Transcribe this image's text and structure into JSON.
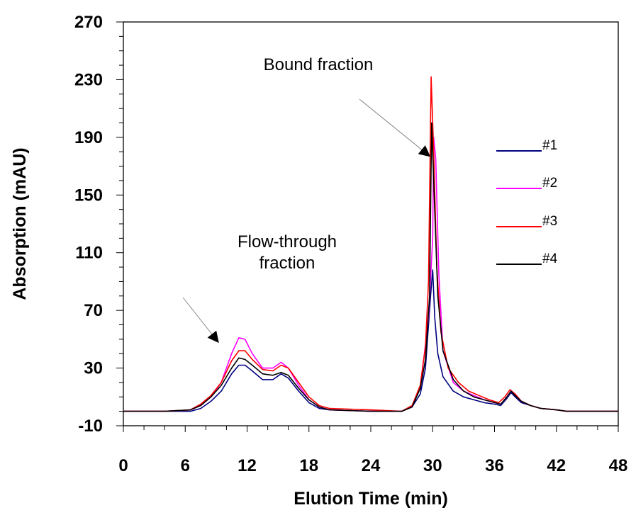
{
  "chart_data": {
    "type": "line",
    "title": "",
    "xlabel": "Elution Time (min)",
    "ylabel": "Absorption (mAU)",
    "xlim": [
      0,
      48
    ],
    "ylim": [
      -10,
      270
    ],
    "x_ticks": [
      0,
      6,
      12,
      18,
      24,
      30,
      36,
      42,
      48
    ],
    "x_tick_labels": [
      "0",
      "6",
      "12",
      "18",
      "24",
      "30",
      "36",
      "42",
      "48"
    ],
    "y_ticks": [
      -10,
      30,
      70,
      110,
      150,
      190,
      230,
      270
    ],
    "y_tick_labels": [
      "-10",
      "30",
      "70",
      "110",
      "150",
      "190",
      "230",
      "270"
    ],
    "grid": false,
    "legend_position": "right",
    "annotations": [
      {
        "text": "Bound fraction",
        "lines": [
          "Bound fraction"
        ],
        "arrow_to": [
          29.7,
          177
        ]
      },
      {
        "text": "Flow-through fraction",
        "lines": [
          "Flow-through",
          "fraction"
        ],
        "arrow_to": [
          9.2,
          48
        ]
      }
    ],
    "series": [
      {
        "name": "#1",
        "color": "#000080",
        "points": [
          [
            0,
            0
          ],
          [
            4,
            0
          ],
          [
            6.5,
            0
          ],
          [
            7.5,
            2
          ],
          [
            8.5,
            7
          ],
          [
            9.5,
            14
          ],
          [
            10.5,
            26
          ],
          [
            11.2,
            32
          ],
          [
            11.8,
            32
          ],
          [
            12.5,
            28
          ],
          [
            13.5,
            22
          ],
          [
            14.5,
            22
          ],
          [
            15.3,
            26
          ],
          [
            16,
            23
          ],
          [
            17,
            14
          ],
          [
            18,
            6
          ],
          [
            19,
            2
          ],
          [
            20,
            1
          ],
          [
            24,
            0
          ],
          [
            27,
            0
          ],
          [
            28,
            3
          ],
          [
            28.8,
            12
          ],
          [
            29.3,
            30
          ],
          [
            29.6,
            60
          ],
          [
            29.8,
            80
          ],
          [
            30,
            98
          ],
          [
            30.2,
            65
          ],
          [
            30.5,
            40
          ],
          [
            31,
            24
          ],
          [
            32,
            14
          ],
          [
            33,
            10
          ],
          [
            34,
            8
          ],
          [
            35,
            6
          ],
          [
            36,
            5
          ],
          [
            36.6,
            4
          ],
          [
            37.2,
            9
          ],
          [
            37.6,
            13
          ],
          [
            38,
            10
          ],
          [
            38.6,
            6
          ],
          [
            39.5,
            4
          ],
          [
            40.5,
            2
          ],
          [
            42,
            1
          ],
          [
            43,
            0
          ],
          [
            48,
            0
          ]
        ]
      },
      {
        "name": "#2",
        "color": "#FF00FF",
        "points": [
          [
            0,
            0
          ],
          [
            4,
            0
          ],
          [
            6.5,
            1
          ],
          [
            7.5,
            4
          ],
          [
            8.5,
            10
          ],
          [
            9.5,
            20
          ],
          [
            10.5,
            40
          ],
          [
            11.2,
            51
          ],
          [
            11.8,
            50
          ],
          [
            12.5,
            40
          ],
          [
            13.5,
            30
          ],
          [
            14.5,
            30
          ],
          [
            15.3,
            34
          ],
          [
            16,
            30
          ],
          [
            17,
            18
          ],
          [
            18,
            8
          ],
          [
            19,
            3
          ],
          [
            20,
            1
          ],
          [
            24,
            0
          ],
          [
            27,
            0
          ],
          [
            28,
            3
          ],
          [
            28.8,
            18
          ],
          [
            29.2,
            40
          ],
          [
            29.6,
            65
          ],
          [
            30,
            120
          ],
          [
            30.1,
            190
          ],
          [
            30.3,
            175
          ],
          [
            30.6,
            95
          ],
          [
            31,
            42
          ],
          [
            32,
            20
          ],
          [
            33,
            14
          ],
          [
            34,
            11
          ],
          [
            35,
            8
          ],
          [
            36,
            6
          ],
          [
            36.6,
            5
          ],
          [
            37.2,
            10
          ],
          [
            37.6,
            14
          ],
          [
            38,
            11
          ],
          [
            38.6,
            7
          ],
          [
            39.5,
            4
          ],
          [
            40.5,
            2
          ],
          [
            42,
            1
          ],
          [
            43,
            0
          ],
          [
            48,
            0
          ]
        ]
      },
      {
        "name": "#3",
        "color": "#FF0000",
        "points": [
          [
            0,
            0
          ],
          [
            4,
            0
          ],
          [
            6.5,
            1
          ],
          [
            7.5,
            5
          ],
          [
            8.5,
            11
          ],
          [
            9.5,
            20
          ],
          [
            10.5,
            35
          ],
          [
            11.2,
            42
          ],
          [
            11.8,
            42
          ],
          [
            12.5,
            36
          ],
          [
            13.5,
            29
          ],
          [
            14.5,
            28
          ],
          [
            15.3,
            32
          ],
          [
            16,
            30
          ],
          [
            17,
            20
          ],
          [
            18,
            10
          ],
          [
            19,
            4
          ],
          [
            20,
            2
          ],
          [
            24,
            1
          ],
          [
            27,
            0
          ],
          [
            28,
            4
          ],
          [
            28.8,
            18
          ],
          [
            29.3,
            45
          ],
          [
            29.6,
            90
          ],
          [
            29.85,
            232
          ],
          [
            30.1,
            180
          ],
          [
            30.4,
            100
          ],
          [
            30.8,
            55
          ],
          [
            31.5,
            30
          ],
          [
            32.5,
            20
          ],
          [
            33.5,
            14
          ],
          [
            34.5,
            11
          ],
          [
            35.5,
            8
          ],
          [
            36.4,
            6
          ],
          [
            37,
            10
          ],
          [
            37.5,
            15
          ],
          [
            38,
            12
          ],
          [
            38.6,
            7
          ],
          [
            39.5,
            4
          ],
          [
            40.5,
            2
          ],
          [
            42,
            1
          ],
          [
            43,
            0
          ],
          [
            48,
            0
          ]
        ]
      },
      {
        "name": "#4",
        "color": "#000000",
        "points": [
          [
            0,
            0
          ],
          [
            4,
            0
          ],
          [
            6.5,
            1
          ],
          [
            7.5,
            4
          ],
          [
            8.5,
            10
          ],
          [
            9.5,
            18
          ],
          [
            10.5,
            30
          ],
          [
            11.2,
            37
          ],
          [
            11.8,
            36
          ],
          [
            12.5,
            32
          ],
          [
            13.5,
            26
          ],
          [
            14.5,
            25
          ],
          [
            15.3,
            27
          ],
          [
            16,
            25
          ],
          [
            17,
            16
          ],
          [
            18,
            8
          ],
          [
            19,
            3
          ],
          [
            20,
            1
          ],
          [
            24,
            0
          ],
          [
            27,
            0
          ],
          [
            28,
            3
          ],
          [
            28.8,
            16
          ],
          [
            29.3,
            36
          ],
          [
            29.7,
            80
          ],
          [
            29.9,
            200
          ],
          [
            30.15,
            150
          ],
          [
            30.5,
            80
          ],
          [
            31,
            42
          ],
          [
            32,
            22
          ],
          [
            33,
            14
          ],
          [
            34,
            10
          ],
          [
            35,
            8
          ],
          [
            36,
            6
          ],
          [
            36.6,
            5
          ],
          [
            37.2,
            10
          ],
          [
            37.6,
            14
          ],
          [
            38,
            11
          ],
          [
            38.6,
            7
          ],
          [
            39.5,
            4
          ],
          [
            40.5,
            2
          ],
          [
            42,
            1
          ],
          [
            43,
            0
          ],
          [
            48,
            0
          ]
        ]
      }
    ]
  }
}
